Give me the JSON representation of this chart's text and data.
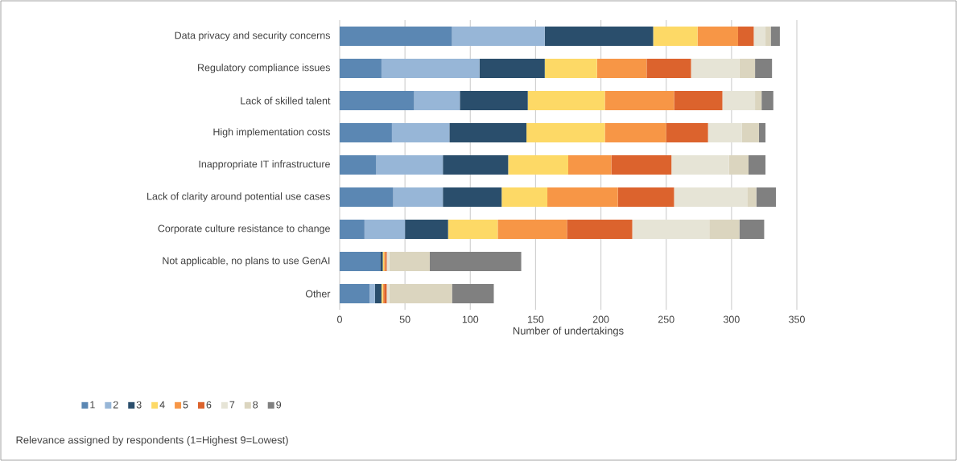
{
  "chart_data": {
    "type": "bar",
    "orientation": "horizontal",
    "stacked": true,
    "categories": [
      "Data privacy and security concerns",
      "Regulatory compliance issues",
      "Lack of skilled talent",
      "High implementation costs",
      "Inappropriate IT infrastructure",
      "Lack of clarity around potential use cases",
      "Corporate culture resistance to change",
      "Not applicable, no plans to use GenAI",
      "Other"
    ],
    "series": [
      {
        "name": "1",
        "color": "#5b87b3",
        "values": [
          86,
          32,
          57,
          40,
          28,
          41,
          19,
          31,
          23
        ]
      },
      {
        "name": "2",
        "color": "#97b6d7",
        "values": [
          71,
          75,
          35,
          44,
          51,
          38,
          31,
          0,
          4
        ]
      },
      {
        "name": "3",
        "color": "#2a4e6c",
        "values": [
          83,
          50,
          52,
          59,
          50,
          45,
          33,
          2,
          5
        ]
      },
      {
        "name": "4",
        "color": "#fdd966",
        "values": [
          34,
          40,
          59,
          60,
          46,
          35,
          38,
          1,
          1
        ]
      },
      {
        "name": "5",
        "color": "#f79646",
        "values": [
          31,
          38,
          53,
          47,
          33,
          54,
          53,
          1,
          1
        ]
      },
      {
        "name": "6",
        "color": "#dc632d",
        "values": [
          12,
          34,
          37,
          32,
          46,
          43,
          50,
          1,
          2
        ]
      },
      {
        "name": "7",
        "color": "#e6e4d6",
        "values": [
          9,
          37,
          25,
          26,
          44,
          56,
          59,
          2,
          2
        ]
      },
      {
        "name": "8",
        "color": "#dbd5bf",
        "values": [
          4,
          12,
          5,
          13,
          15,
          7,
          23,
          31,
          48
        ]
      },
      {
        "name": "9",
        "color": "#808080",
        "values": [
          7,
          13,
          9,
          5,
          13,
          15,
          19,
          70,
          32
        ]
      }
    ],
    "xlabel": "Number of undertakings",
    "xlim": [
      0,
      350
    ],
    "xticks": [
      0,
      50,
      100,
      150,
      200,
      250,
      300,
      350
    ],
    "grid": "x",
    "legend": "bottom",
    "legend_title": "Relevance assigned by respondents (1=Highest 9=Lowest)"
  }
}
